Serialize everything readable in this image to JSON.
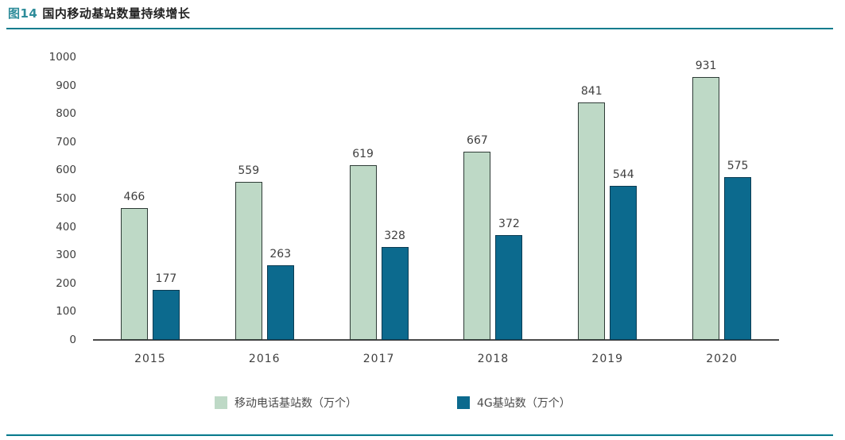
{
  "figure": {
    "label": "图14",
    "title": "国内移动基站数量持续增长"
  },
  "chart_data": {
    "type": "bar",
    "categories": [
      "2015",
      "2016",
      "2017",
      "2018",
      "2019",
      "2020"
    ],
    "series": [
      {
        "name": "移动电话基站数（万个）",
        "values": [
          466,
          559,
          619,
          667,
          841,
          931
        ],
        "color": "#bed9c6",
        "border_color": "#2e3b36"
      },
      {
        "name": "4G基站数（万个）",
        "values": [
          177,
          263,
          328,
          372,
          544,
          575
        ],
        "color": "#0c6a8e",
        "border_color": "#0b3b52"
      }
    ],
    "title": "图14 国内移动基站数量持续增长",
    "xlabel": "",
    "ylabel": "",
    "ylim": [
      0,
      1000
    ],
    "ytick_step": 100,
    "grid": false,
    "value_labels": true,
    "legend_position": "bottom"
  },
  "colors": {
    "accent_teal": "#0d7c8e",
    "title_label_teal": "#2e8c9a",
    "text_dark": "#222222",
    "axis_gray": "#4a4a4a",
    "series0_fill": "#bed9c6",
    "series1_fill": "#0c6a8e"
  }
}
